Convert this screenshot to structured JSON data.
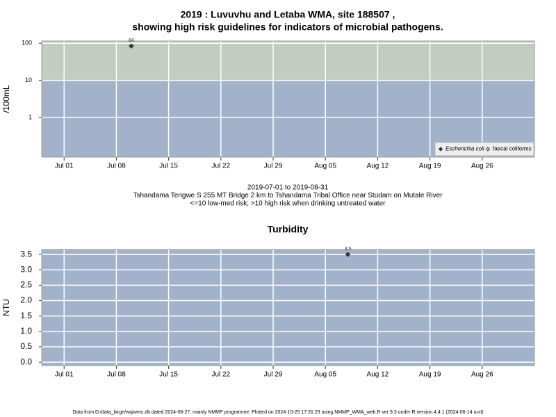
{
  "chart_data": [
    {
      "type": "scatter",
      "title": [
        "2019 : Luvuvhu and Letaba WMA, site 188507 ,",
        "showing high risk guidelines for indicators of microbial pathogens."
      ],
      "ylabel": "/100mL",
      "caption": [
        "2019-07-01 to 2019-08-31",
        "Tshandama Tengwe S 255 MT Bridge 2 km to Tshandama Tribal Office near Studam on Mutale River",
        "<=10 low-med risk; >10 high risk when drinking untreated water"
      ],
      "x": [
        "2019-07-10"
      ],
      "series": [
        {
          "name": "Escherichia coli",
          "color": "#333333",
          "values": [
            84
          ],
          "marker": "filled"
        },
        {
          "name": "faecal coliforms",
          "color": "#333333",
          "values": [
            null
          ],
          "marker": "open"
        }
      ],
      "log_y": true,
      "ylim": [
        0.085,
        115
      ],
      "yticks": [
        1,
        10,
        100
      ],
      "xlim": [
        "2019-06-28",
        "2019-09-02"
      ],
      "xticks": [
        {
          "value": "2019-07-01",
          "label": "Jul 01"
        },
        {
          "value": "2019-07-08",
          "label": "Jul 08"
        },
        {
          "value": "2019-07-15",
          "label": "Jul 15"
        },
        {
          "value": "2019-07-22",
          "label": "Jul 22"
        },
        {
          "value": "2019-07-29",
          "label": "Jul 29"
        },
        {
          "value": "2019-08-05",
          "label": "Aug 05"
        },
        {
          "value": "2019-08-12",
          "label": "Aug 12"
        },
        {
          "value": "2019-08-19",
          "label": "Aug 19"
        },
        {
          "value": "2019-08-26",
          "label": "Aug 26"
        }
      ],
      "background": "#a3b2cb",
      "threshold": 10,
      "high_risk_color": "#c2ccc0",
      "grid": true,
      "legend": "lower right"
    },
    {
      "type": "scatter",
      "title": [
        "Turbidity"
      ],
      "ylabel": "NTU",
      "x": [
        "2019-08-08"
      ],
      "series": [
        {
          "name": "Turbidity",
          "color": "#333333",
          "values": [
            3.5
          ],
          "marker": "filled"
        }
      ],
      "log_y": false,
      "ylim": [
        -0.11,
        3.66
      ],
      "yticks": [
        {
          "value": 0,
          "label": "0.0"
        },
        0.5,
        {
          "value": 1,
          "label": "1.0"
        },
        1.5,
        {
          "value": 2,
          "label": "2.0"
        },
        2.5,
        {
          "value": 3,
          "label": "3.0"
        },
        3.5
      ],
      "xlim": [
        "2019-06-28",
        "2019-09-02"
      ],
      "xticks": [
        {
          "value": "2019-07-01",
          "label": "Jul 01"
        },
        {
          "value": "2019-07-08",
          "label": "Jul 08"
        },
        {
          "value": "2019-07-15",
          "label": "Jul 15"
        },
        {
          "value": "2019-07-22",
          "label": "Jul 22"
        },
        {
          "value": "2019-07-29",
          "label": "Jul 29"
        },
        {
          "value": "2019-08-05",
          "label": "Aug 05"
        },
        {
          "value": "2019-08-12",
          "label": "Aug 12"
        },
        {
          "value": "2019-08-19",
          "label": "Aug 19"
        },
        {
          "value": "2019-08-26",
          "label": "Aug 26"
        }
      ],
      "background": "#a3b2cb",
      "grid": true
    }
  ],
  "footer": "Data from D:/data_large/wq/wms.db dated 2024-08-27, mainly NMMP programme. Plotted on 2024-10-25 17:31:29 using NMMP_WMA_web.R ver 9.3 under R version 4.4.1 (2024-06-14 ucrt)"
}
